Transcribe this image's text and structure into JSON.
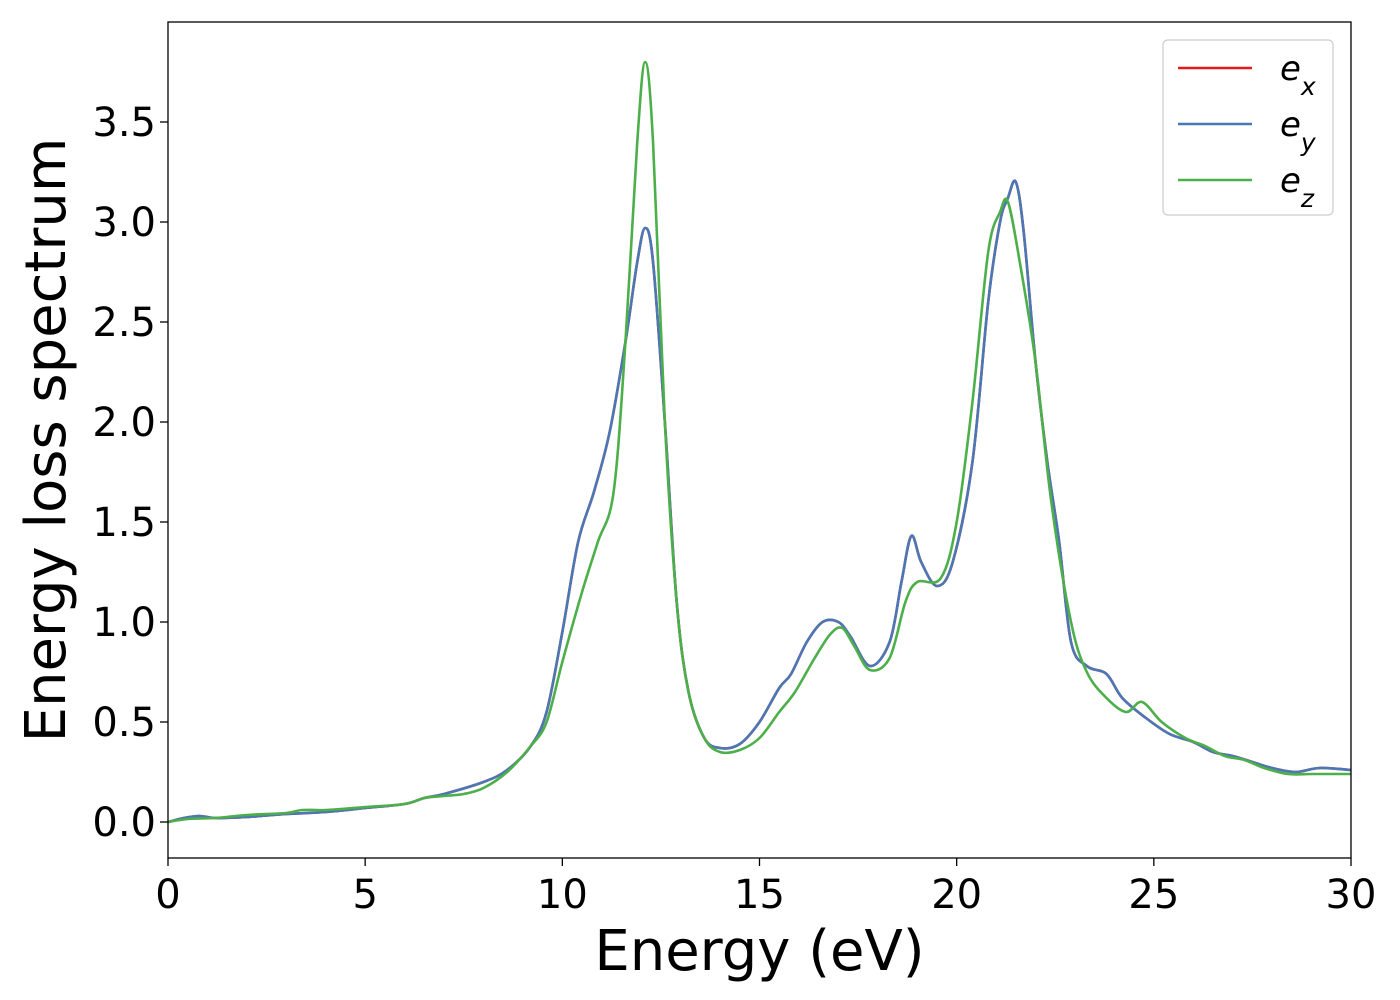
{
  "chart_data": {
    "type": "line",
    "xlabel": "Energy (eV)",
    "ylabel": "Energy loss spectrum",
    "xlim": [
      0,
      30
    ],
    "ylim": [
      -0.18,
      4.0
    ],
    "xticks": [
      0,
      5,
      10,
      15,
      20,
      25,
      30
    ],
    "yticks": [
      0.0,
      0.5,
      1.0,
      1.5,
      2.0,
      2.5,
      3.0,
      3.5
    ],
    "xtick_labels": [
      "0",
      "5",
      "10",
      "15",
      "20",
      "25",
      "30"
    ],
    "ytick_labels": [
      "0.0",
      "0.5",
      "1.0",
      "1.5",
      "2.0",
      "2.5",
      "3.0",
      "3.5"
    ],
    "grid": false,
    "legend_position": "top-right",
    "series": [
      {
        "name": "e_x",
        "legend_base": "e",
        "legend_sub": "x",
        "color": "#e41a1c",
        "points": [
          [
            0,
            0.0
          ],
          [
            0.4,
            0.02
          ],
          [
            0.8,
            0.03
          ],
          [
            1.2,
            0.02
          ],
          [
            2,
            0.025
          ],
          [
            3,
            0.04
          ],
          [
            4,
            0.05
          ],
          [
            5,
            0.07
          ],
          [
            6,
            0.09
          ],
          [
            6.5,
            0.12
          ],
          [
            7,
            0.14
          ],
          [
            8,
            0.2
          ],
          [
            8.6,
            0.26
          ],
          [
            9.2,
            0.38
          ],
          [
            9.6,
            0.55
          ],
          [
            10.0,
            0.95
          ],
          [
            10.4,
            1.4
          ],
          [
            10.8,
            1.65
          ],
          [
            11.2,
            1.95
          ],
          [
            11.6,
            2.4
          ],
          [
            11.9,
            2.8
          ],
          [
            12.1,
            2.97
          ],
          [
            12.3,
            2.8
          ],
          [
            12.6,
            2.0
          ],
          [
            12.9,
            1.1
          ],
          [
            13.2,
            0.65
          ],
          [
            13.6,
            0.42
          ],
          [
            14.0,
            0.37
          ],
          [
            14.5,
            0.39
          ],
          [
            15.0,
            0.5
          ],
          [
            15.5,
            0.67
          ],
          [
            15.8,
            0.74
          ],
          [
            16.2,
            0.9
          ],
          [
            16.6,
            1.0
          ],
          [
            17.0,
            1.0
          ],
          [
            17.3,
            0.93
          ],
          [
            17.8,
            0.78
          ],
          [
            18.3,
            0.9
          ],
          [
            18.6,
            1.2
          ],
          [
            18.85,
            1.43
          ],
          [
            19.1,
            1.3
          ],
          [
            19.5,
            1.18
          ],
          [
            19.9,
            1.3
          ],
          [
            20.4,
            1.8
          ],
          [
            20.8,
            2.6
          ],
          [
            21.1,
            3.0
          ],
          [
            21.3,
            3.12
          ],
          [
            21.5,
            3.2
          ],
          [
            21.7,
            2.95
          ],
          [
            22.0,
            2.3
          ],
          [
            22.3,
            1.8
          ],
          [
            22.6,
            1.4
          ],
          [
            22.9,
            0.9
          ],
          [
            23.3,
            0.78
          ],
          [
            23.8,
            0.74
          ],
          [
            24.2,
            0.62
          ],
          [
            24.8,
            0.52
          ],
          [
            25.4,
            0.44
          ],
          [
            26.0,
            0.4
          ],
          [
            26.5,
            0.35
          ],
          [
            27.0,
            0.33
          ],
          [
            27.5,
            0.3
          ],
          [
            28.0,
            0.27
          ],
          [
            28.6,
            0.25
          ],
          [
            29.2,
            0.27
          ],
          [
            30.0,
            0.26
          ]
        ]
      },
      {
        "name": "e_y",
        "legend_base": "e",
        "legend_sub": "y",
        "color": "#4a78b5",
        "points": [
          [
            0,
            0.0
          ],
          [
            0.4,
            0.02
          ],
          [
            0.8,
            0.03
          ],
          [
            1.2,
            0.02
          ],
          [
            2,
            0.025
          ],
          [
            3,
            0.04
          ],
          [
            4,
            0.05
          ],
          [
            5,
            0.07
          ],
          [
            6,
            0.09
          ],
          [
            6.5,
            0.12
          ],
          [
            7,
            0.14
          ],
          [
            8,
            0.2
          ],
          [
            8.6,
            0.26
          ],
          [
            9.2,
            0.38
          ],
          [
            9.6,
            0.55
          ],
          [
            10.0,
            0.95
          ],
          [
            10.4,
            1.4
          ],
          [
            10.8,
            1.65
          ],
          [
            11.2,
            1.95
          ],
          [
            11.6,
            2.4
          ],
          [
            11.9,
            2.8
          ],
          [
            12.1,
            2.97
          ],
          [
            12.3,
            2.8
          ],
          [
            12.6,
            2.0
          ],
          [
            12.9,
            1.1
          ],
          [
            13.2,
            0.65
          ],
          [
            13.6,
            0.42
          ],
          [
            14.0,
            0.37
          ],
          [
            14.5,
            0.39
          ],
          [
            15.0,
            0.5
          ],
          [
            15.5,
            0.67
          ],
          [
            15.8,
            0.74
          ],
          [
            16.2,
            0.9
          ],
          [
            16.6,
            1.0
          ],
          [
            17.0,
            1.0
          ],
          [
            17.3,
            0.93
          ],
          [
            17.8,
            0.78
          ],
          [
            18.3,
            0.9
          ],
          [
            18.6,
            1.2
          ],
          [
            18.85,
            1.43
          ],
          [
            19.1,
            1.3
          ],
          [
            19.5,
            1.18
          ],
          [
            19.9,
            1.3
          ],
          [
            20.4,
            1.8
          ],
          [
            20.8,
            2.6
          ],
          [
            21.1,
            3.0
          ],
          [
            21.3,
            3.12
          ],
          [
            21.5,
            3.2
          ],
          [
            21.7,
            2.95
          ],
          [
            22.0,
            2.3
          ],
          [
            22.3,
            1.8
          ],
          [
            22.6,
            1.4
          ],
          [
            22.9,
            0.9
          ],
          [
            23.3,
            0.78
          ],
          [
            23.8,
            0.74
          ],
          [
            24.2,
            0.62
          ],
          [
            24.8,
            0.52
          ],
          [
            25.4,
            0.44
          ],
          [
            26.0,
            0.4
          ],
          [
            26.5,
            0.35
          ],
          [
            27.0,
            0.33
          ],
          [
            27.5,
            0.3
          ],
          [
            28.0,
            0.27
          ],
          [
            28.6,
            0.25
          ],
          [
            29.2,
            0.27
          ],
          [
            30.0,
            0.26
          ]
        ]
      },
      {
        "name": "e_z",
        "legend_base": "e",
        "legend_sub": "z",
        "color": "#4daf4a",
        "points": [
          [
            0,
            0.0
          ],
          [
            0.5,
            0.015
          ],
          [
            1.2,
            0.02
          ],
          [
            2,
            0.035
          ],
          [
            3,
            0.045
          ],
          [
            3.4,
            0.06
          ],
          [
            4,
            0.06
          ],
          [
            5,
            0.075
          ],
          [
            6,
            0.09
          ],
          [
            6.5,
            0.12
          ],
          [
            7,
            0.13
          ],
          [
            7.5,
            0.14
          ],
          [
            8,
            0.17
          ],
          [
            8.6,
            0.25
          ],
          [
            9.2,
            0.38
          ],
          [
            9.6,
            0.5
          ],
          [
            10.0,
            0.8
          ],
          [
            10.5,
            1.15
          ],
          [
            10.9,
            1.4
          ],
          [
            11.3,
            1.65
          ],
          [
            11.6,
            2.4
          ],
          [
            11.9,
            3.4
          ],
          [
            12.1,
            3.8
          ],
          [
            12.3,
            3.4
          ],
          [
            12.6,
            2.0
          ],
          [
            12.9,
            1.1
          ],
          [
            13.2,
            0.65
          ],
          [
            13.6,
            0.42
          ],
          [
            14.0,
            0.35
          ],
          [
            14.5,
            0.36
          ],
          [
            15.0,
            0.42
          ],
          [
            15.5,
            0.55
          ],
          [
            15.9,
            0.65
          ],
          [
            16.4,
            0.82
          ],
          [
            16.8,
            0.94
          ],
          [
            17.1,
            0.97
          ],
          [
            17.4,
            0.88
          ],
          [
            17.8,
            0.76
          ],
          [
            18.3,
            0.82
          ],
          [
            18.7,
            1.1
          ],
          [
            19.0,
            1.2
          ],
          [
            19.6,
            1.22
          ],
          [
            20.0,
            1.5
          ],
          [
            20.4,
            2.1
          ],
          [
            20.8,
            2.85
          ],
          [
            21.1,
            3.05
          ],
          [
            21.3,
            3.1
          ],
          [
            21.6,
            2.8
          ],
          [
            22.0,
            2.3
          ],
          [
            22.4,
            1.6
          ],
          [
            22.9,
            1.0
          ],
          [
            23.3,
            0.75
          ],
          [
            23.8,
            0.62
          ],
          [
            24.3,
            0.55
          ],
          [
            24.7,
            0.6
          ],
          [
            25.2,
            0.5
          ],
          [
            25.8,
            0.42
          ],
          [
            26.3,
            0.38
          ],
          [
            26.8,
            0.33
          ],
          [
            27.3,
            0.31
          ],
          [
            27.8,
            0.27
          ],
          [
            28.4,
            0.24
          ],
          [
            29.0,
            0.24
          ],
          [
            29.5,
            0.24
          ],
          [
            30.0,
            0.24
          ]
        ]
      }
    ]
  }
}
